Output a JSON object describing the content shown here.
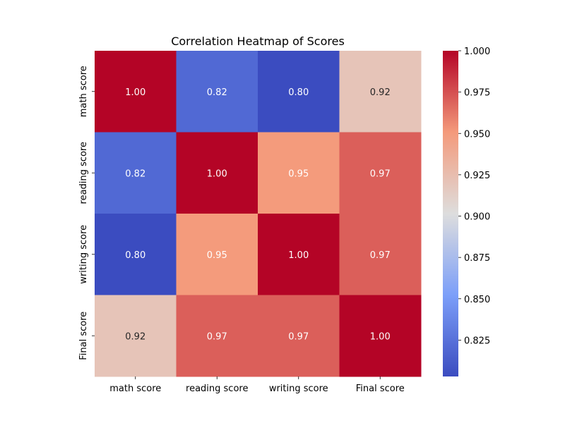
{
  "chart_data": {
    "type": "heatmap",
    "title": "Correlation Heatmap of Scores",
    "row_labels": [
      "math score",
      "reading score",
      "writing score",
      "Final score"
    ],
    "col_labels": [
      "math score",
      "reading score",
      "writing score",
      "Final score"
    ],
    "values": [
      [
        1.0,
        0.82,
        0.8,
        0.92
      ],
      [
        0.82,
        1.0,
        0.95,
        0.97
      ],
      [
        0.8,
        0.95,
        1.0,
        0.97
      ],
      [
        0.92,
        0.97,
        0.97,
        1.0
      ]
    ],
    "cell_labels": [
      [
        "1.00",
        "0.82",
        "0.80",
        "0.92"
      ],
      [
        "0.82",
        "1.00",
        "0.95",
        "0.97"
      ],
      [
        "0.80",
        "0.95",
        "1.00",
        "0.97"
      ],
      [
        "0.92",
        "0.97",
        "0.97",
        "1.00"
      ]
    ],
    "colormap": "coolwarm",
    "colorbar": {
      "vmin": 0.803,
      "vmax": 1.0,
      "ticks": [
        0.825,
        0.85,
        0.875,
        0.9,
        0.925,
        0.95,
        0.975,
        1.0
      ],
      "tick_labels": [
        "0.825",
        "0.850",
        "0.875",
        "0.900",
        "0.925",
        "0.950",
        "0.975",
        "1.000"
      ]
    },
    "colors": {
      "low": "#3b4cc0",
      "mid": "#dddddd",
      "high": "#b40426"
    }
  }
}
